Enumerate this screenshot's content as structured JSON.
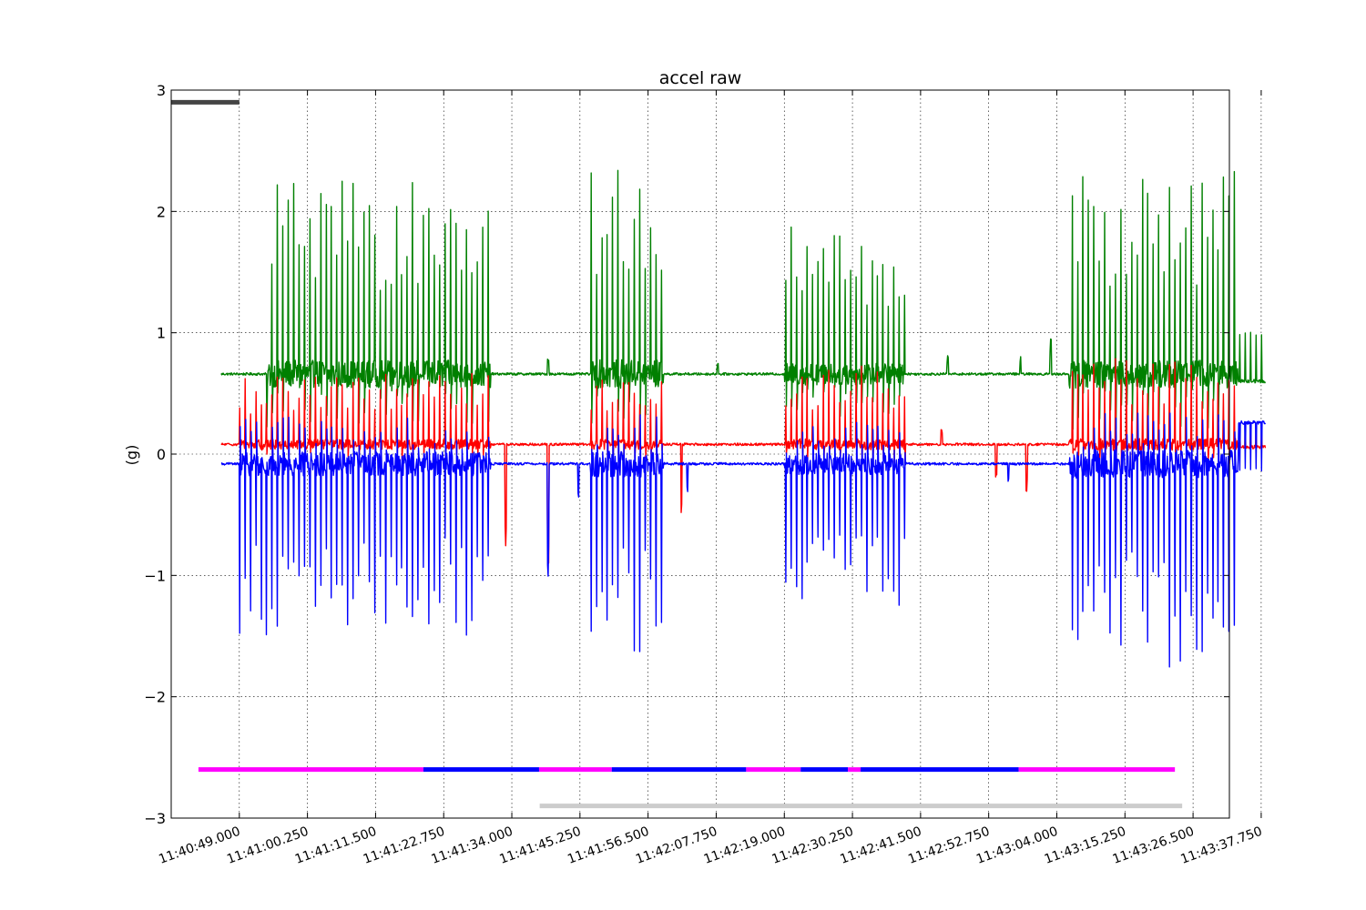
{
  "chart_data": {
    "type": "line",
    "title": "accel raw",
    "xlabel": "",
    "ylabel": "(g)",
    "ylim": [
      -3,
      3
    ],
    "yticks": [
      3,
      2,
      1,
      0,
      -1,
      -2,
      -3
    ],
    "ytick_labels": [
      "3",
      "2",
      "1",
      "0",
      "−1",
      "−2",
      "−3"
    ],
    "xticks_seconds": [
      0,
      11.25,
      22.5,
      33.75,
      45,
      56.25,
      67.5,
      78.75,
      90,
      101.25,
      112.5,
      123.75,
      135,
      146.25,
      157.5,
      168.75
    ],
    "xtick_labels": [
      "11:40:49.000",
      "11:41:00.250",
      "11:41:11.500",
      "11:41:22.750",
      "11:41:34.000",
      "11:41:45.250",
      "11:41:56.500",
      "11:42:07.750",
      "11:42:19.000",
      "11:42:30.250",
      "11:42:41.500",
      "11:42:52.750",
      "11:43:04.000",
      "11:43:15.250",
      "11:43:26.500",
      "11:43:37.750"
    ],
    "xlim_seconds": [
      -11.25,
      163.5
    ],
    "grid": true,
    "series": [
      {
        "color": "#008000",
        "baseline": 0.66,
        "bursts": [
          [
            4.5,
            41.5,
            1.25
          ],
          [
            58,
            70,
            1.3
          ],
          [
            90,
            110,
            1.0
          ],
          [
            137,
            169,
            1.3
          ]
        ],
        "quiet_bumps": [
          [
            51,
            0.15
          ],
          [
            79,
            0.1
          ],
          [
            117,
            0.15
          ],
          [
            129,
            0.15
          ],
          [
            134,
            0.3
          ]
        ],
        "ymax": 2.35,
        "end_value": 0.6
      },
      {
        "color": "#ff0000",
        "baseline": 0.08,
        "bursts": [
          [
            0,
            41.5,
            0.45
          ],
          [
            58,
            70,
            0.45
          ],
          [
            90,
            110,
            0.5
          ],
          [
            137,
            169,
            0.55
          ]
        ],
        "quiet_bumps": [
          [
            44,
            -1.1
          ],
          [
            51,
            -1.05
          ],
          [
            73,
            -0.8
          ],
          [
            116,
            0.15
          ],
          [
            125,
            -0.35
          ],
          [
            130,
            -0.4
          ]
        ],
        "ymin": -2.15,
        "end_value": 0.06
      },
      {
        "color": "#0000ff",
        "baseline": -0.08,
        "bursts": [
          [
            0,
            41.5,
            -1.1
          ],
          [
            58,
            70,
            -1.2
          ],
          [
            90,
            110,
            -1.0
          ],
          [
            137,
            169,
            -1.3
          ]
        ],
        "quiet_bumps": [
          [
            51,
            -1.0
          ],
          [
            56,
            -0.35
          ],
          [
            74,
            -0.3
          ],
          [
            107,
            -0.3
          ],
          [
            127,
            -0.15
          ]
        ],
        "ymin": -3.0,
        "ymax": 3.0,
        "end_value": 0.26
      }
    ],
    "segments": [
      {
        "color": "#ff00ff",
        "y": -2.6,
        "x0": -6.75,
        "x1": 30.4
      },
      {
        "color": "#0000ff",
        "y": -2.6,
        "x0": 30.4,
        "x1": 49.5
      },
      {
        "color": "#ff00ff",
        "y": -2.6,
        "x0": 49.5,
        "x1": 61.5
      },
      {
        "color": "#0000ff",
        "y": -2.6,
        "x0": 61.5,
        "x1": 83.7
      },
      {
        "color": "#ff00ff",
        "y": -2.6,
        "x0": 83.7,
        "x1": 92.7
      },
      {
        "color": "#0000ff",
        "y": -2.6,
        "x0": 92.7,
        "x1": 100.5
      },
      {
        "color": "#ff00ff",
        "y": -2.6,
        "x0": 100.5,
        "x1": 102.6
      },
      {
        "color": "#0000ff",
        "y": -2.6,
        "x0": 102.6,
        "x1": 128.7
      },
      {
        "color": "#ff00ff",
        "y": -2.6,
        "x0": 128.7,
        "x1": 154.5
      },
      {
        "color": "#cccccc",
        "y": -2.9,
        "x0": 49.6,
        "x1": 155.7
      },
      {
        "color": "#444444",
        "y": 2.9,
        "x0": -11.25,
        "x1": 0
      }
    ]
  }
}
